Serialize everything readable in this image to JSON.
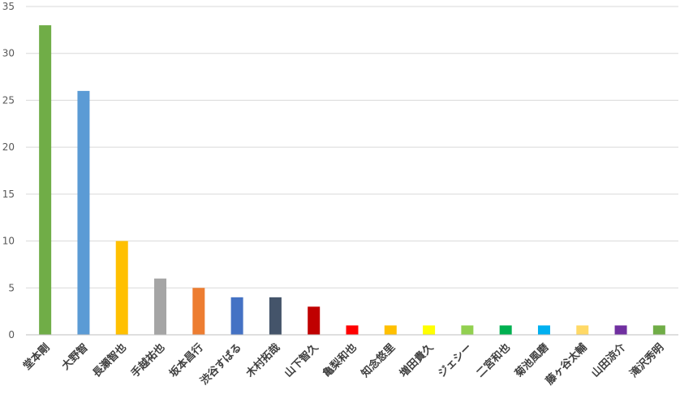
{
  "chart_data": {
    "type": "bar",
    "title": "",
    "xlabel": "",
    "ylabel": "",
    "ylim": [
      0,
      35
    ],
    "yticks": [
      0,
      5,
      10,
      15,
      20,
      25,
      30,
      35
    ],
    "grid": true,
    "legend": "none",
    "categories": [
      "堂本剛",
      "大野智",
      "長瀬智也",
      "手越祐也",
      "坂本昌行",
      "渋谷すばる",
      "木村拓哉",
      "山下智久",
      "亀梨和也",
      "知念悠里",
      "増田貴久",
      "ジェシー",
      "二宮和也",
      "菊池風磨",
      "藤ヶ谷太輔",
      "山田涼介",
      "滝沢秀明"
    ],
    "values": [
      33,
      26,
      10,
      6,
      5,
      4,
      4,
      3,
      1,
      1,
      1,
      1,
      1,
      1,
      1,
      1,
      1
    ],
    "colors": [
      "#70ad47",
      "#5b9bd5",
      "#ffc000",
      "#a5a5a5",
      "#ed7d31",
      "#4472c4",
      "#44546a",
      "#c00000",
      "#ff0000",
      "#ffc000",
      "#ffff00",
      "#92d050",
      "#00b050",
      "#00b0f0",
      "#ffd966",
      "#7030a0",
      "#70ad47"
    ]
  }
}
